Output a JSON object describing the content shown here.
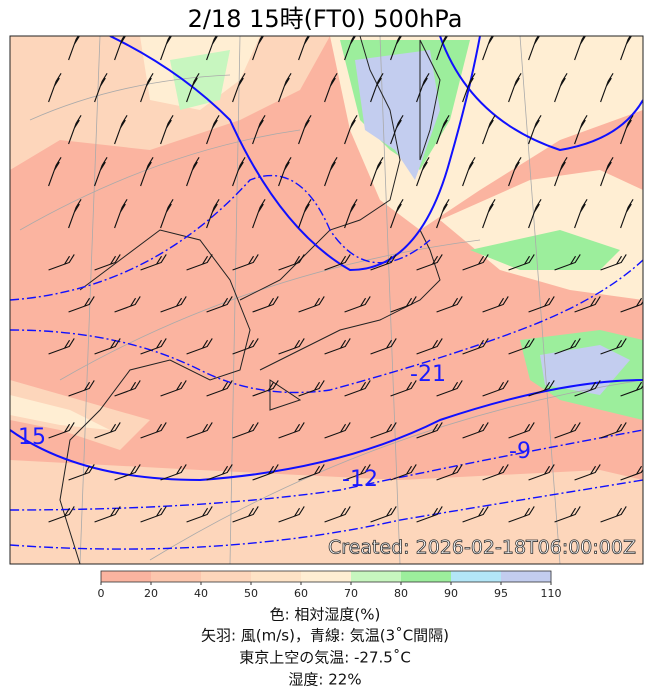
{
  "title": "2/18  15時(FT0)     500hPa",
  "created": "Created: 2026-02-18T06:00:00Z",
  "contour_labels": [
    "15",
    "-12",
    "-9",
    "-21"
  ],
  "colorbar": {
    "ticks": [
      0,
      20,
      40,
      50,
      60,
      70,
      80,
      90,
      95,
      110
    ],
    "colors": [
      "#fbb4a0",
      "#fcc6ad",
      "#fdd6bb",
      "#fee3c6",
      "#ffeed3",
      "#c7f6bf",
      "#9cee9c",
      "#b3e6f7",
      "#c3cdef"
    ]
  },
  "captions": [
    "色: 相対湿度(%)",
    "矢羽: 風(m/s)，青線: 気温(3˚C間隔)",
    "東京上空の気温: -27.5˚C",
    "湿度: 22%"
  ]
}
